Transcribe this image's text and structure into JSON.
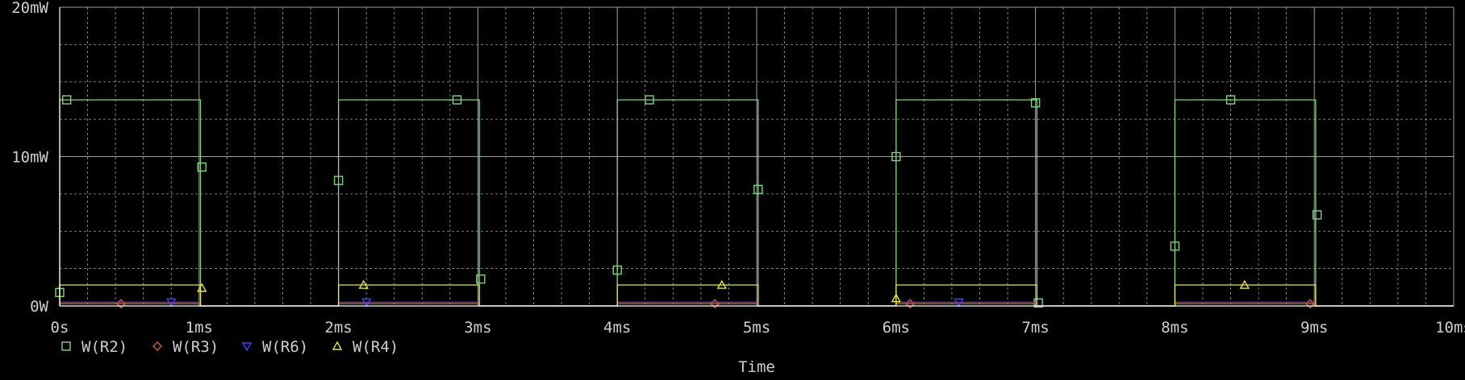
{
  "chart_data": {
    "type": "line",
    "xlabel": "Time",
    "ylabel": "",
    "xlim": [
      0,
      10
    ],
    "ylim": [
      0,
      20
    ],
    "x_ticks": [
      {
        "value": 0,
        "label": "0s"
      },
      {
        "value": 1,
        "label": "1ms"
      },
      {
        "value": 2,
        "label": "2ms"
      },
      {
        "value": 3,
        "label": "3ms"
      },
      {
        "value": 4,
        "label": "4ms"
      },
      {
        "value": 5,
        "label": "5ms"
      },
      {
        "value": 6,
        "label": "6ms"
      },
      {
        "value": 7,
        "label": "7ms"
      },
      {
        "value": 8,
        "label": "8ms"
      },
      {
        "value": 9,
        "label": "9ms"
      },
      {
        "value": 10,
        "label": "10ms"
      }
    ],
    "y_ticks": [
      {
        "value": 0,
        "label": "0W"
      },
      {
        "value": 10,
        "label": "10mW"
      },
      {
        "value": 20,
        "label": "20mW"
      }
    ],
    "grid": true,
    "legend_position": "bottom-left",
    "background": "#000000",
    "axis_color": "#ffffff",
    "grid_color": "#a0a0a0",
    "text_color": "#cfcfcf",
    "series": [
      {
        "name": "W(R2)",
        "color": "#7ed67e",
        "marker": "square",
        "x": [
          0,
          0,
          1.01,
          1.01,
          2,
          2,
          3.01,
          3.01,
          4,
          4,
          5.01,
          5.01,
          6,
          6,
          7.01,
          7.01,
          8,
          8,
          9.01,
          9.01,
          10
        ],
        "y": [
          0,
          13.8,
          13.8,
          0,
          0,
          13.8,
          13.8,
          0,
          0,
          13.8,
          13.8,
          0,
          0,
          13.8,
          13.8,
          0,
          0,
          13.8,
          13.8,
          0,
          0
        ],
        "marker_points": [
          [
            0.0,
            0.9
          ],
          [
            0.05,
            13.8
          ],
          [
            1.02,
            9.3
          ],
          [
            2.0,
            8.4
          ],
          [
            2.85,
            13.8
          ],
          [
            3.02,
            1.8
          ],
          [
            4.0,
            2.4
          ],
          [
            4.23,
            13.8
          ],
          [
            5.01,
            7.8
          ],
          [
            6.0,
            10.0
          ],
          [
            7.0,
            13.6
          ],
          [
            7.02,
            0.2
          ],
          [
            8.0,
            4.0
          ],
          [
            8.4,
            13.8
          ],
          [
            9.02,
            6.1
          ]
        ]
      },
      {
        "name": "W(R3)",
        "color": "#d45a3c",
        "marker": "diamond",
        "x": [
          0,
          0,
          1.01,
          1.01,
          2,
          2,
          3.01,
          3.01,
          4,
          4,
          5.01,
          5.01,
          6,
          6,
          7.01,
          7.01,
          8,
          8,
          9.01,
          9.01,
          10
        ],
        "y": [
          0,
          0.15,
          0.15,
          0,
          0,
          0.15,
          0.15,
          0,
          0,
          0.15,
          0.15,
          0,
          0,
          0.15,
          0.15,
          0,
          0,
          0.15,
          0.15,
          0,
          0
        ],
        "marker_points": [
          [
            0.44,
            0.15
          ],
          [
            4.7,
            0.15
          ],
          [
            6.1,
            0.15
          ],
          [
            8.97,
            0.15
          ]
        ]
      },
      {
        "name": "W(R6)",
        "color": "#4a3cff",
        "marker": "triangle-down",
        "x": [
          0,
          0,
          1.01,
          1.01,
          2,
          2,
          3.01,
          3.01,
          4,
          4,
          5.01,
          5.01,
          6,
          6,
          7.01,
          7.01,
          8,
          8,
          9.01,
          9.01,
          10
        ],
        "y": [
          0,
          0.25,
          0.25,
          0,
          0,
          0.25,
          0.25,
          0,
          0,
          0.25,
          0.25,
          0,
          0,
          0.25,
          0.25,
          0,
          0,
          0.25,
          0.25,
          0,
          0
        ],
        "marker_points": [
          [
            0.8,
            0.25
          ],
          [
            2.2,
            0.25
          ],
          [
            6.45,
            0.25
          ]
        ]
      },
      {
        "name": "W(R4)",
        "color": "#e6e64a",
        "marker": "triangle-up",
        "x": [
          0,
          0,
          1.01,
          1.01,
          2,
          2,
          3.01,
          3.01,
          4,
          4,
          5.01,
          5.01,
          6,
          6,
          7.01,
          7.01,
          8,
          8,
          9.01,
          9.01,
          10
        ],
        "y": [
          0,
          1.4,
          1.4,
          0,
          0,
          1.4,
          1.4,
          0,
          0,
          1.4,
          1.4,
          0,
          0,
          1.4,
          1.4,
          0,
          0,
          1.4,
          1.4,
          0,
          0
        ],
        "marker_points": [
          [
            1.02,
            1.2
          ],
          [
            2.18,
            1.4
          ],
          [
            4.75,
            1.4
          ],
          [
            6.0,
            0.5
          ],
          [
            8.5,
            1.4
          ]
        ]
      }
    ]
  }
}
